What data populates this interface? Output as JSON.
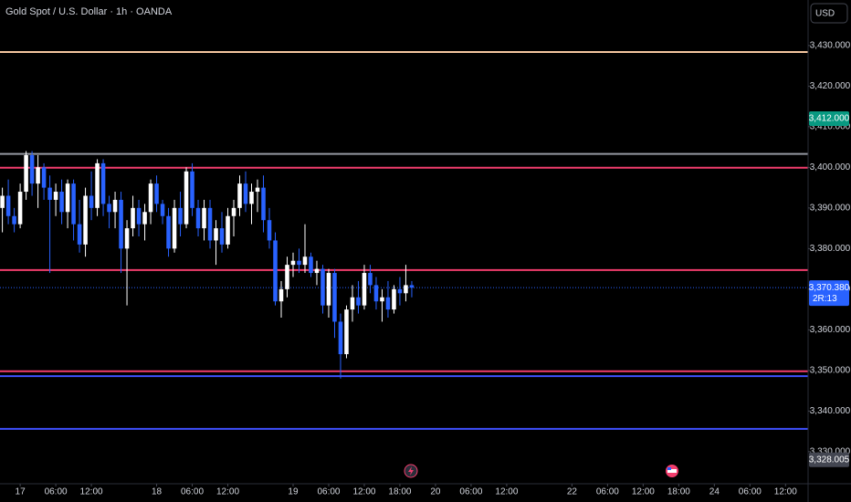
{
  "chart_data": {
    "type": "candlestick",
    "title": "Gold Spot / U.S. Dollar · 1h · OANDA",
    "currency_button": "USD",
    "up_color": "#ffffff",
    "down_color": "#2962ff",
    "xlim": [
      -3.4,
      132.8
    ],
    "ylim": [
      3322.1,
      3441.2
    ],
    "xticks": [
      {
        "value": 0,
        "label": "17"
      },
      {
        "value": 6,
        "label": "06:00"
      },
      {
        "value": 12,
        "label": "12:00"
      },
      {
        "value": 23,
        "label": "18"
      },
      {
        "value": 29,
        "label": "06:00"
      },
      {
        "value": 35,
        "label": "12:00"
      },
      {
        "value": 46,
        "label": "19"
      },
      {
        "value": 52,
        "label": "06:00"
      },
      {
        "value": 58,
        "label": "12:00"
      },
      {
        "value": 64,
        "label": "18:00"
      },
      {
        "value": 70,
        "label": "20"
      },
      {
        "value": 76,
        "label": "06:00"
      },
      {
        "value": 82,
        "label": "12:00"
      },
      {
        "value": 93,
        "label": "22"
      },
      {
        "value": 99,
        "label": "06:00"
      },
      {
        "value": 105,
        "label": "12:00"
      },
      {
        "value": 111,
        "label": "18:00"
      },
      {
        "value": 117,
        "label": "24"
      },
      {
        "value": 123,
        "label": "06:00"
      },
      {
        "value": 129,
        "label": "12:00"
      }
    ],
    "yticks": [
      {
        "value": 3330,
        "label": "3,330.000"
      },
      {
        "value": 3340,
        "label": "3,340.000"
      },
      {
        "value": 3350,
        "label": "3,350.000"
      },
      {
        "value": 3360,
        "label": "3,360.000"
      },
      {
        "value": 3370,
        "label": "3,370.000"
      },
      {
        "value": 3380,
        "label": "3,380.000"
      },
      {
        "value": 3390,
        "label": "3,390.000"
      },
      {
        "value": 3400,
        "label": "3,400.000"
      },
      {
        "value": 3410,
        "label": "3,410.000"
      },
      {
        "value": 3420,
        "label": "3,420.000"
      },
      {
        "value": 3430,
        "label": "3,430.000"
      }
    ],
    "levels": [
      {
        "value": 3428.4,
        "color": "#f5c6a0"
      },
      {
        "value": 3403.3,
        "color": "#9598a1"
      },
      {
        "value": 3399.9,
        "color": "#f23d6d"
      },
      {
        "value": 3374.7,
        "color": "#f23d6d"
      },
      {
        "value": 3349.8,
        "color": "#f23d6d"
      },
      {
        "value": 3348.6,
        "color": "#3f51ff"
      },
      {
        "value": 3335.6,
        "color": "#3f51ff"
      }
    ],
    "price_labels": [
      {
        "value": 3412,
        "label": "3,412.000",
        "color": "#089981"
      },
      {
        "value": 3370.38,
        "label": "3,370.380",
        "color": "#2962ff",
        "countdown": "2R:13"
      },
      {
        "value": 3328.005,
        "label": "3,328.005",
        "color": "#434651"
      }
    ],
    "x": [
      -3,
      -2,
      -1,
      0,
      1,
      2,
      3,
      4,
      5,
      6,
      7,
      8,
      9,
      10,
      11,
      12,
      13,
      14,
      15,
      16,
      17,
      18,
      19,
      20,
      21,
      22,
      23,
      24,
      25,
      26,
      27,
      28,
      29,
      30,
      31,
      32,
      33,
      34,
      35,
      36,
      37,
      38,
      39,
      40,
      41,
      42,
      43,
      44,
      45,
      46,
      47,
      48,
      49,
      50,
      51,
      52,
      53,
      54,
      55,
      56,
      57,
      58,
      59,
      60,
      61,
      62,
      63,
      64,
      65,
      66
    ],
    "open": [
      3390,
      3393,
      3388,
      3386,
      3394,
      3403,
      3396,
      3400,
      3395,
      3392,
      3394,
      3389,
      3396,
      3386,
      3381,
      3393,
      3390,
      3401,
      3391,
      3389,
      3392,
      3380,
      3385,
      3390,
      3386,
      3389,
      3396,
      3391,
      3388,
      3380,
      3390,
      3386,
      3399,
      3390,
      3385,
      3390,
      3382,
      3385,
      3381,
      3388,
      3390,
      3396,
      3391,
      3394,
      3395,
      3387,
      3382,
      3367,
      3370,
      3376,
      3377,
      3376,
      3378,
      3374,
      3375,
      3366,
      3374,
      3362,
      3354,
      3365,
      3368,
      3366,
      3374,
      3371,
      3367,
      3368,
      3365,
      3370,
      3369,
      3371
    ],
    "high": [
      3395,
      3397,
      3390,
      3396,
      3404,
      3404,
      3403,
      3401,
      3398,
      3396,
      3397,
      3397,
      3397,
      3392,
      3395,
      3399,
      3402,
      3402,
      3393,
      3394,
      3394,
      3387,
      3393,
      3392,
      3391,
      3397,
      3398,
      3392,
      3390,
      3392,
      3394,
      3400,
      3401,
      3392,
      3392,
      3392,
      3387,
      3389,
      3390,
      3392,
      3398,
      3399,
      3396,
      3397,
      3398,
      3390,
      3384,
      3372,
      3378,
      3379,
      3380,
      3386,
      3379,
      3377,
      3376,
      3375,
      3375,
      3364,
      3366,
      3371,
      3372,
      3376,
      3376,
      3373,
      3370,
      3372,
      3371,
      3373,
      3376,
      3372
    ],
    "low": [
      3384,
      3386,
      3384,
      3385,
      3392,
      3393,
      3390,
      3392,
      3374,
      3388,
      3386,
      3385,
      3382,
      3379,
      3378,
      3387,
      3388,
      3388,
      3385,
      3385,
      3374,
      3366,
      3383,
      3383,
      3382,
      3386,
      3389,
      3386,
      3378,
      3379,
      3383,
      3385,
      3388,
      3383,
      3382,
      3380,
      3376,
      3379,
      3380,
      3383,
      3388,
      3389,
      3386,
      3389,
      3384,
      3380,
      3366,
      3363,
      3368,
      3373,
      3374,
      3374,
      3373,
      3371,
      3364,
      3363,
      3358,
      3348,
      3353,
      3362,
      3364,
      3365,
      3369,
      3365,
      3362,
      3363,
      3364,
      3366,
      3367,
      3368
    ],
    "close": [
      3393,
      3388,
      3386,
      3394,
      3403,
      3396,
      3400,
      3395,
      3392,
      3394,
      3389,
      3396,
      3386,
      3381,
      3393,
      3390,
      3401,
      3391,
      3389,
      3392,
      3380,
      3385,
      3390,
      3386,
      3389,
      3396,
      3391,
      3388,
      3380,
      3390,
      3386,
      3399,
      3390,
      3385,
      3390,
      3382,
      3385,
      3381,
      3388,
      3390,
      3396,
      3391,
      3394,
      3395,
      3387,
      3382,
      3367,
      3370,
      3376,
      3377,
      3376,
      3378,
      3374,
      3375,
      3366,
      3374,
      3362,
      3354,
      3365,
      3368,
      3366,
      3374,
      3371,
      3367,
      3368,
      3365,
      3370,
      3369,
      3371,
      3370.38
    ]
  }
}
